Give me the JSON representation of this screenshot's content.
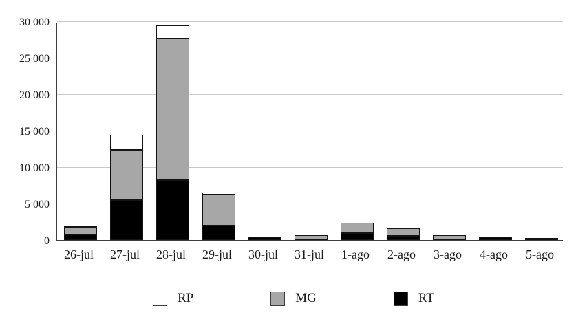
{
  "chart_data": {
    "type": "bar",
    "stacked": true,
    "title": "",
    "xlabel": "",
    "ylabel": "",
    "categories": [
      "26-jul",
      "27-jul",
      "28-jul",
      "29-jul",
      "30-jul",
      "31-jul",
      "1-ago",
      "2-ago",
      "3-ago",
      "4-ago",
      "5-ago"
    ],
    "series": [
      {
        "name": "RT",
        "color": "#000000",
        "values": [
          800,
          5500,
          8200,
          2000,
          400,
          100,
          900,
          600,
          100,
          400,
          300
        ]
      },
      {
        "name": "MG",
        "color": "#a7a7a7",
        "values": [
          1000,
          6900,
          19400,
          4200,
          0,
          600,
          1500,
          1000,
          600,
          0,
          0
        ]
      },
      {
        "name": "RP",
        "color": "#ffffff",
        "values": [
          100,
          2000,
          1800,
          300,
          0,
          0,
          0,
          0,
          0,
          0,
          0
        ]
      }
    ],
    "totals": [
      1900,
      14400,
      29400,
      6500,
      400,
      700,
      2400,
      1600,
      700,
      400,
      300
    ],
    "ylim": [
      0,
      30000
    ],
    "ytick_values": [
      0,
      5000,
      10000,
      15000,
      20000,
      25000,
      30000
    ],
    "ytick_labels": [
      "0",
      "5 000",
      "10 000",
      "15 000",
      "20 000",
      "25 000",
      "30 000"
    ],
    "grid": true,
    "legend_position": "bottom",
    "legend_order": [
      "RP",
      "MG",
      "RT"
    ]
  },
  "colors": {
    "bar_border": "#141414",
    "axis": "#3c3c3c",
    "gridline": "#c9c9c9",
    "background": "#ffffff",
    "text": "#1a1a1a"
  }
}
